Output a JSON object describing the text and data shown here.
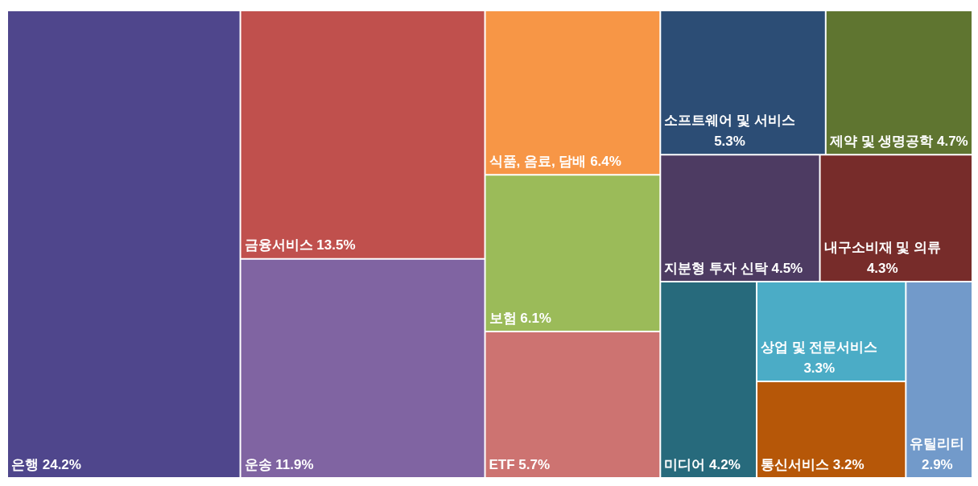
{
  "chart_data": {
    "type": "other",
    "categories": [
      "은행",
      "금융서비스",
      "운송",
      "식품, 음료, 담배",
      "보험",
      "ETF",
      "소프트웨어 및 서비스",
      "제약 및 생명공학",
      "지분형 투자 신탁",
      "내구소비재 및 의류",
      "미디어",
      "상업 및 전문서비스",
      "통신서비스",
      "유틸리티"
    ],
    "values": [
      24.2,
      13.5,
      11.9,
      6.4,
      6.1,
      5.7,
      5.3,
      4.7,
      4.5,
      4.3,
      4.2,
      3.3,
      3.2,
      2.9
    ],
    "value_labels": [
      "24.2%",
      "13.5%",
      "11.9%",
      "6.4%",
      "6.1%",
      "5.7%",
      "5.3%",
      "4.7%",
      "4.5%",
      "4.3%",
      "4.2%",
      "3.3%",
      "3.2%",
      "2.9%"
    ],
    "colors": [
      "#4f468c",
      "#c0504d",
      "#8064a2",
      "#f79646",
      "#9bbb59",
      "#cd7371",
      "#2c4d75",
      "#5f7530",
      "#4d3b62",
      "#772c2a",
      "#276a7c",
      "#4bacc6",
      "#b65708",
      "#729aca"
    ]
  }
}
